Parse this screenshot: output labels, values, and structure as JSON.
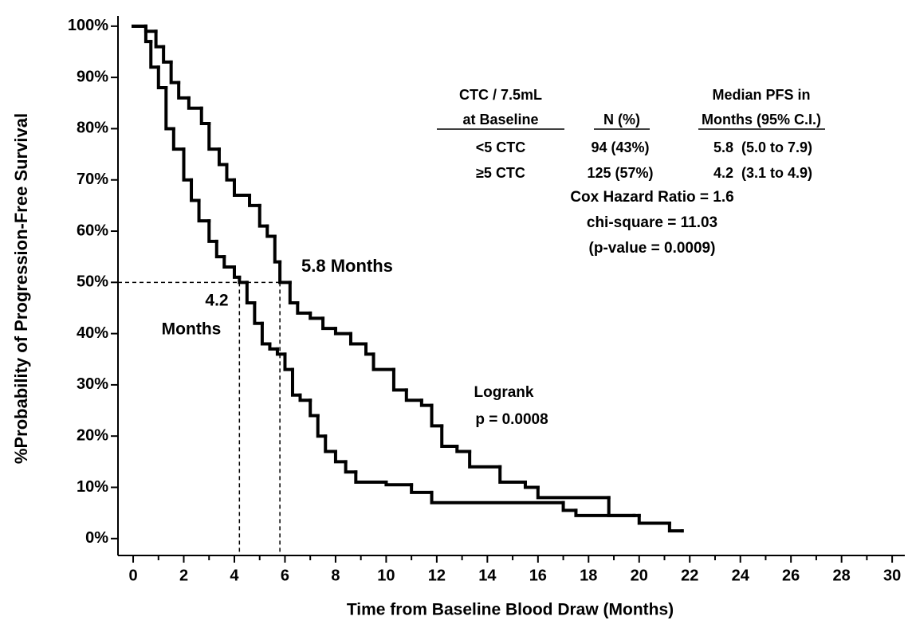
{
  "chart_data": {
    "type": "step",
    "xlabel": "Time from Baseline Blood Draw (Months)",
    "ylabel": "%Probability of Progression-Free Survival",
    "xlim": [
      -0.6,
      30.5
    ],
    "ylim": [
      -3.3,
      102
    ],
    "xticks": [
      0,
      2,
      4,
      6,
      8,
      10,
      12,
      14,
      16,
      18,
      20,
      22,
      24,
      26,
      28,
      30
    ],
    "xminor_ticks": [
      1,
      3,
      5,
      7,
      9,
      11,
      13,
      15,
      17,
      19,
      21,
      23,
      25,
      27,
      29
    ],
    "yticks": [
      {
        "value": 0,
        "label": "0%"
      },
      {
        "value": 10,
        "label": "10%"
      },
      {
        "value": 20,
        "label": "20%"
      },
      {
        "value": 30,
        "label": "30%"
      },
      {
        "value": 40,
        "label": "40%"
      },
      {
        "value": 50,
        "label": "50%"
      },
      {
        "value": 60,
        "label": "60%"
      },
      {
        "value": 70,
        "label": "70%"
      },
      {
        "value": 80,
        "label": "80%"
      },
      {
        "value": 90,
        "label": "90%"
      },
      {
        "value": 100,
        "label": "100%"
      }
    ],
    "series": [
      {
        "name": "<5 CTC",
        "color": "#000000",
        "n_label": "94 (43%)",
        "median_label": "5.8  (5.0 to 7.9)",
        "x": [
          0,
          0.5,
          0.9,
          1.2,
          1.5,
          1.8,
          2.2,
          2.7,
          3.0,
          3.4,
          3.7,
          4.0,
          4.6,
          5.0,
          5.3,
          5.6,
          5.8,
          6.2,
          6.5,
          7.0,
          7.5,
          8.0,
          8.6,
          9.2,
          9.5,
          10.3,
          10.8,
          11.4,
          11.8,
          12.2,
          12.8,
          13.3,
          14.5,
          15.5,
          16.0,
          18.8,
          19.8
        ],
        "values": [
          100,
          99,
          96,
          93,
          89,
          86,
          84,
          81,
          76,
          73,
          70,
          67,
          65,
          61,
          59,
          54,
          50,
          46,
          44,
          43,
          41,
          40,
          38,
          36,
          33,
          29,
          27,
          26,
          22,
          18,
          17,
          14,
          11,
          10,
          8,
          4.5,
          4.5
        ]
      },
      {
        "name": "≥5 CTC",
        "color": "#000000",
        "n_label": "125 (57%)",
        "median_label": "4.2  (3.1 to 4.9)",
        "x": [
          0,
          0.5,
          0.7,
          1.0,
          1.3,
          1.6,
          2.0,
          2.3,
          2.6,
          3.0,
          3.3,
          3.6,
          4.0,
          4.2,
          4.5,
          4.8,
          5.1,
          5.4,
          5.7,
          6.0,
          6.3,
          6.6,
          7.0,
          7.3,
          7.6,
          8.0,
          8.4,
          8.8,
          10.0,
          11.0,
          11.8,
          17.0,
          17.5,
          20.0,
          21.2,
          21.7
        ],
        "values": [
          100,
          97,
          92,
          88,
          80,
          76,
          70,
          66,
          62,
          58,
          55,
          53,
          51,
          50,
          46,
          42,
          38,
          37,
          36,
          33,
          28,
          27,
          24,
          20,
          17,
          15,
          13,
          11,
          10.5,
          9,
          7,
          5.5,
          4.5,
          3,
          1.5,
          1.5
        ]
      }
    ],
    "reference_y": 50,
    "reference_x": [
      4.2,
      5.8
    ],
    "annotations": {
      "median_high": "5.8 Months",
      "median_low": [
        "4.2",
        "Months"
      ],
      "logrank": [
        "Logrank",
        "p = 0.0008"
      ],
      "stats": [
        "Cox Hazard Ratio = 1.6",
        "chi-square = 11.03",
        "(p-value = 0.0009)"
      ]
    },
    "table_header": {
      "group": [
        "CTC / 7.5mL",
        "at Baseline"
      ],
      "n": "N (%)",
      "median": [
        "Median PFS in",
        "Months (95% C.I.)"
      ]
    }
  }
}
